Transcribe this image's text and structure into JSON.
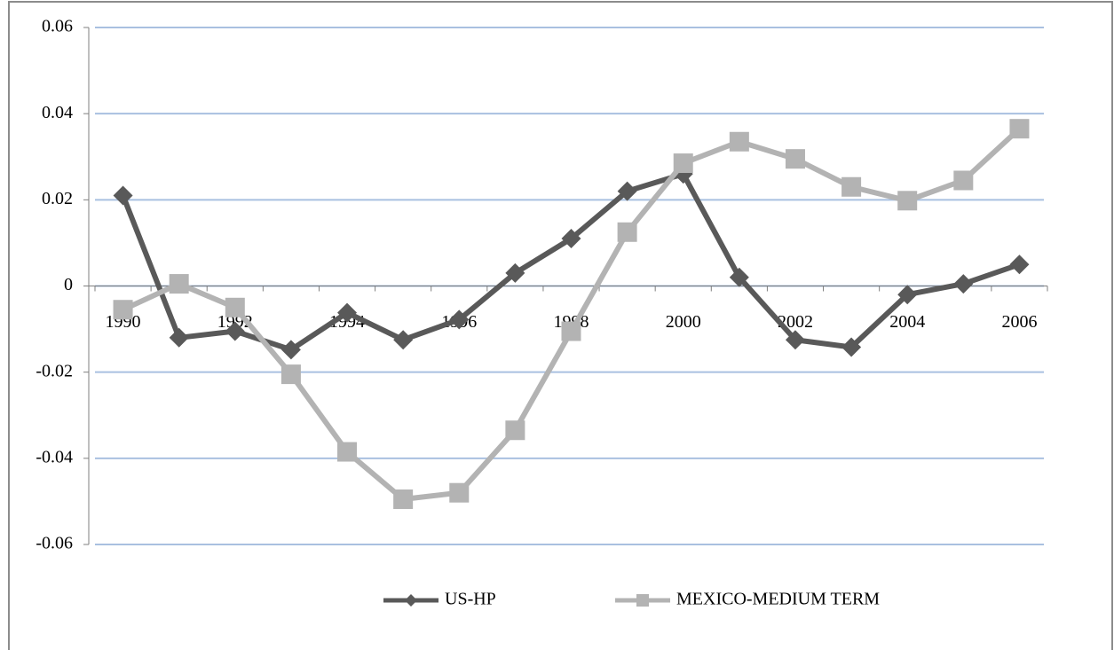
{
  "chart_data": {
    "type": "line",
    "categories": [
      "1990",
      null,
      "1992",
      null,
      "1994",
      null,
      "1996",
      null,
      "1998",
      null,
      "2000",
      null,
      "2002",
      null,
      "2004",
      null,
      "2006"
    ],
    "series": [
      {
        "name": "US-HP",
        "color": "#595959",
        "marker": "diamond",
        "values": [
          0.021,
          -0.012,
          -0.0105,
          -0.0148,
          -0.0062,
          -0.0125,
          -0.0078,
          0.003,
          0.011,
          0.022,
          0.026,
          0.002,
          -0.0125,
          -0.0142,
          -0.002,
          0.0005,
          0.005
        ]
      },
      {
        "name": "MEXICO-MEDIUM TERM",
        "color": "#b3b3b3",
        "marker": "square",
        "values": [
          -0.0055,
          0.0005,
          -0.005,
          -0.0205,
          -0.0385,
          -0.0495,
          -0.048,
          -0.0335,
          -0.0105,
          0.0125,
          0.0285,
          0.0335,
          0.0295,
          0.023,
          0.0198,
          0.0245,
          0.0365
        ]
      }
    ],
    "ylim": [
      -0.06,
      0.06
    ],
    "yticks": [
      -0.06,
      -0.04,
      -0.02,
      0,
      0.02,
      0.04,
      0.06
    ],
    "grid": true,
    "grid_color": "#a9c0e0",
    "legend": "bottom"
  }
}
